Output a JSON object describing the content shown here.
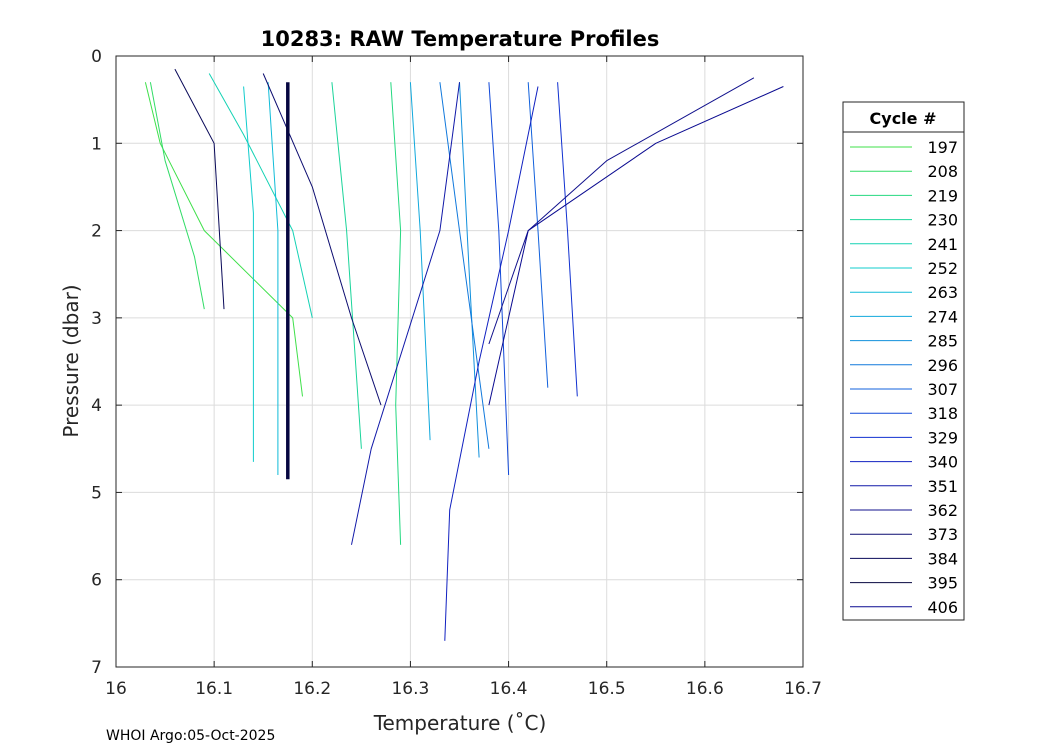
{
  "chart_data": {
    "type": "line",
    "title": "10283: RAW Temperature Profiles",
    "xlabel": "Temperature (˚C)",
    "ylabel": "Pressure (dbar)",
    "xlim": [
      16,
      16.7
    ],
    "ylim": [
      0,
      7
    ],
    "y_reversed": true,
    "grid": true,
    "xticks": [
      "16",
      "16.1",
      "16.2",
      "16.3",
      "16.4",
      "16.5",
      "16.6",
      "16.7"
    ],
    "yticks": [
      "0",
      "1",
      "2",
      "3",
      "4",
      "5",
      "6",
      "7"
    ],
    "legend": {
      "title": "Cycle #",
      "position": "right-outside",
      "entries": [
        {
          "label": "197",
          "color": "#3fe04a"
        },
        {
          "label": "208",
          "color": "#30dc66"
        },
        {
          "label": "219",
          "color": "#24d880"
        },
        {
          "label": "230",
          "color": "#1ad49a"
        },
        {
          "label": "241",
          "color": "#14d2b4"
        },
        {
          "label": "252",
          "color": "#10cccc"
        },
        {
          "label": "263",
          "color": "#10bcd8"
        },
        {
          "label": "274",
          "color": "#10a8dc"
        },
        {
          "label": "285",
          "color": "#1090dc"
        },
        {
          "label": "296",
          "color": "#1078dc"
        },
        {
          "label": "307",
          "color": "#1060dc"
        },
        {
          "label": "318",
          "color": "#1048d8"
        },
        {
          "label": "329",
          "color": "#1030d0"
        },
        {
          "label": "340",
          "color": "#1020c0"
        },
        {
          "label": "351",
          "color": "#1018a8"
        },
        {
          "label": "362",
          "color": "#10108c"
        },
        {
          "label": "373",
          "color": "#0c0c70"
        },
        {
          "label": "384",
          "color": "#080858"
        },
        {
          "label": "395",
          "color": "#060640"
        },
        {
          "label": "406",
          "color": "#0a0a90"
        }
      ]
    },
    "series": [
      {
        "name": "197",
        "points": [
          [
            16.03,
            0.3
          ],
          [
            16.045,
            1.0
          ],
          [
            16.09,
            2.0
          ],
          [
            16.18,
            3.0
          ],
          [
            16.19,
            3.9
          ]
        ]
      },
      {
        "name": "208",
        "points": [
          [
            16.035,
            0.3
          ],
          [
            16.05,
            1.2
          ],
          [
            16.08,
            2.3
          ],
          [
            16.09,
            2.9
          ]
        ]
      },
      {
        "name": "219",
        "points": [
          [
            16.28,
            0.3
          ],
          [
            16.29,
            2.0
          ],
          [
            16.285,
            4.0
          ],
          [
            16.29,
            5.6
          ]
        ]
      },
      {
        "name": "230",
        "points": [
          [
            16.22,
            0.3
          ],
          [
            16.235,
            2.0
          ],
          [
            16.25,
            4.5
          ]
        ]
      },
      {
        "name": "241",
        "points": [
          [
            16.095,
            0.2
          ],
          [
            16.13,
            0.9
          ],
          [
            16.18,
            2.0
          ],
          [
            16.2,
            3.0
          ]
        ]
      },
      {
        "name": "252",
        "points": [
          [
            16.13,
            0.35
          ],
          [
            16.14,
            1.8
          ],
          [
            16.14,
            4.65
          ]
        ]
      },
      {
        "name": "263",
        "points": [
          [
            16.155,
            0.3
          ],
          [
            16.165,
            2.0
          ],
          [
            16.165,
            4.8
          ]
        ]
      },
      {
        "name": "274",
        "points": [
          [
            16.3,
            0.3
          ],
          [
            16.31,
            2.0
          ],
          [
            16.32,
            4.4
          ]
        ]
      },
      {
        "name": "285",
        "points": [
          [
            16.35,
            0.3
          ],
          [
            16.36,
            2.5
          ],
          [
            16.37,
            4.6
          ]
        ]
      },
      {
        "name": "296",
        "points": [
          [
            16.33,
            0.3
          ],
          [
            16.35,
            2.0
          ],
          [
            16.38,
            4.5
          ]
        ]
      },
      {
        "name": "307",
        "points": [
          [
            16.42,
            0.3
          ],
          [
            16.43,
            2.0
          ],
          [
            16.44,
            3.8
          ]
        ]
      },
      {
        "name": "318",
        "points": [
          [
            16.38,
            0.3
          ],
          [
            16.39,
            2.0
          ],
          [
            16.4,
            4.8
          ]
        ]
      },
      {
        "name": "329",
        "points": [
          [
            16.45,
            0.3
          ],
          [
            16.46,
            2.0
          ],
          [
            16.47,
            3.9
          ]
        ]
      },
      {
        "name": "340",
        "points": [
          [
            16.43,
            0.35
          ],
          [
            16.4,
            2.0
          ],
          [
            16.37,
            3.5
          ],
          [
            16.34,
            5.2
          ],
          [
            16.335,
            6.7
          ]
        ]
      },
      {
        "name": "351",
        "points": [
          [
            16.35,
            0.3
          ],
          [
            16.33,
            2.0
          ],
          [
            16.26,
            4.5
          ],
          [
            16.24,
            5.6
          ]
        ]
      },
      {
        "name": "362",
        "points": [
          [
            16.65,
            0.25
          ],
          [
            16.5,
            1.2
          ],
          [
            16.42,
            2.0
          ],
          [
            16.38,
            3.3
          ]
        ]
      },
      {
        "name": "373",
        "points": [
          [
            16.15,
            0.2
          ],
          [
            16.2,
            1.5
          ],
          [
            16.24,
            3.0
          ],
          [
            16.27,
            4.0
          ]
        ]
      },
      {
        "name": "384",
        "points": [
          [
            16.06,
            0.15
          ],
          [
            16.1,
            1.0
          ],
          [
            16.11,
            2.9
          ]
        ]
      },
      {
        "name": "395",
        "points": [
          [
            16.175,
            0.3
          ],
          [
            16.175,
            2.0
          ],
          [
            16.175,
            4.85
          ]
        ]
      },
      {
        "name": "406",
        "points": [
          [
            16.68,
            0.35
          ],
          [
            16.55,
            1.0
          ],
          [
            16.42,
            2.0
          ],
          [
            16.38,
            4.0
          ]
        ]
      }
    ]
  },
  "footer": {
    "credit": "WHOI Argo:05-Oct-2025"
  }
}
